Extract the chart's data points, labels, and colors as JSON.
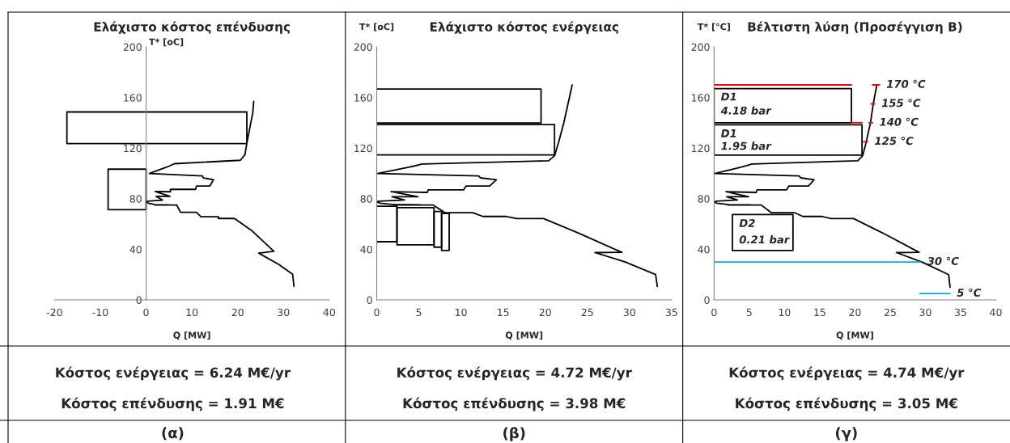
{
  "chart_data": [
    {
      "type": "line",
      "title": "Ελάχιστο κόστος επένδυσης",
      "xlabel": "Q [MW]",
      "ylabel": "T* [oC]",
      "xlim": [
        -20,
        40
      ],
      "ylim": [
        0,
        200
      ],
      "xticks": [
        -20,
        -10,
        0,
        10,
        20,
        30,
        40
      ],
      "yticks": [
        0,
        40,
        80,
        120,
        160,
        200
      ],
      "series": [
        {
          "color": "#000000",
          "x": [
            23.5,
            23.3,
            22,
            21.6,
            20.6,
            6.2,
            4.5,
            0.7,
            12.3,
            12.5,
            14.7,
            13.9,
            11,
            10.8,
            5.3,
            5.3,
            2,
            5.2,
            2.2,
            3.6,
            0.3,
            0,
            0.5,
            2,
            5,
            2,
            6.7,
            7.5,
            11,
            12,
            15.8,
            15.8,
            19.3,
            23,
            27.9,
            24.6,
            29,
            32,
            32.3
          ],
          "values": [
            157,
            148,
            124,
            115,
            110.4,
            107.7,
            105,
            100,
            98,
            96.5,
            95,
            90,
            90,
            87.4,
            87.4,
            85.5,
            85.7,
            81.9,
            81.9,
            78.9,
            78,
            77.5,
            76.5,
            75.4,
            75.2,
            75,
            75,
            69.3,
            69.3,
            65.7,
            65.7,
            64.4,
            64.4,
            55,
            38.4,
            37,
            28,
            20.3,
            10.7
          ]
        },
        {
          "color": "#000000",
          "x": [
            -17.3,
            22,
            22,
            null,
            22,
            -17.3,
            -17.3
          ],
          "values": [
            123.6,
            123.6,
            148.6,
            null,
            148.6,
            148.6,
            123.6
          ]
        },
        {
          "color": "#000000",
          "x": [
            0,
            -8.3,
            -8.3,
            null,
            -8.3,
            0,
            0
          ],
          "values": [
            71.4,
            71.4,
            103.4,
            null,
            103.4,
            103.4,
            71.4
          ]
        }
      ],
      "annotations": [
        "Κόστος ενέργειας = 6.24 M€/yr",
        "Κόστος επένδυσης = 1.91 M€",
        "(α)"
      ]
    },
    {
      "type": "line",
      "title": "Ελάχιστο κόστος ενέργειας",
      "xlabel": "Q [MW]",
      "ylabel": "T* [oC]",
      "xlim": [
        0,
        35
      ],
      "ylim": [
        0,
        200
      ],
      "xticks": [
        0,
        5,
        10,
        15,
        20,
        25,
        30,
        35
      ],
      "yticks": [
        0,
        40,
        80,
        120,
        160,
        200
      ],
      "series": [
        {
          "color": "#000000",
          "x": [
            23.2,
            22.7,
            22.2,
            21.6,
            21.1,
            20.4,
            5.4,
            3.9,
            0.1,
            12.1,
            12.3,
            14.2,
            13.4,
            10.6,
            10.3,
            6.1,
            6,
            1.7,
            4.9,
            1.8,
            3.3,
            0.3,
            0,
            0.4,
            2.1,
            5.2,
            2,
            6.7,
            8.1,
            11.4,
            12.6,
            15.3,
            16.6,
            19.8,
            23.9,
            29.1,
            25.9,
            29.5,
            33.1,
            33.3
          ],
          "values": [
            170,
            155,
            140,
            125,
            114,
            110,
            107.5,
            105,
            100,
            98,
            96.5,
            95,
            90,
            90,
            87,
            87,
            85,
            85.5,
            81.6,
            81.6,
            79,
            78,
            77.5,
            76.5,
            75.4,
            75.2,
            75,
            75,
            69,
            69,
            66,
            66,
            64.3,
            64.3,
            53,
            37.6,
            37.4,
            30,
            20,
            10.7
          ]
        },
        {
          "color": "#000000",
          "x": [
            0,
            19.5,
            19.5,
            0
          ],
          "values": [
            139.9,
            139.9,
            166.7,
            166.7
          ]
        },
        {
          "color": "#000000",
          "x": [
            0,
            21.1,
            21.1,
            0
          ],
          "values": [
            114.7,
            114.7,
            138.6,
            138.6
          ]
        },
        {
          "color": "#000000",
          "x": [
            0,
            2.4,
            2.4,
            0
          ],
          "values": [
            46,
            46,
            74,
            74
          ]
        },
        {
          "color": "#000000",
          "x": [
            2.4,
            6.8,
            6.8,
            null,
            6.8,
            2.4,
            2.4
          ],
          "values": [
            43.5,
            43.5,
            73,
            null,
            73,
            73,
            43.5
          ]
        },
        {
          "color": "#000000",
          "x": [
            6.8,
            7.7,
            7.7,
            null,
            7.7,
            6.8,
            6.8
          ],
          "values": [
            41.7,
            41.7,
            69.9,
            null,
            69.9,
            69.9,
            41.7
          ]
        },
        {
          "color": "#000000",
          "x": [
            7.7,
            8.6,
            8.6,
            null,
            8.6,
            7.7,
            7.7
          ],
          "values": [
            39.1,
            39.1,
            68.4,
            null,
            68.4,
            68.4,
            39.1
          ]
        }
      ],
      "annotations": [
        "Κόστος ενέργειας = 4.72 M€/yr",
        "Κόστος επένδυσης = 3.98 M€",
        "(β)"
      ]
    },
    {
      "type": "line",
      "title": "Βέλτιστη λύση (Προσέγγιση Β)",
      "xlabel": "Q [MW]",
      "ylabel": "T* [°C]",
      "xlim": [
        0,
        40
      ],
      "ylim": [
        0,
        200
      ],
      "xticks": [
        0,
        5,
        10,
        15,
        20,
        25,
        30,
        35,
        40
      ],
      "yticks": [
        0,
        40,
        80,
        120,
        160,
        200
      ],
      "series": [
        {
          "color": "#000000",
          "x": [
            23.1,
            22.6,
            22.2,
            21.6,
            21.1,
            20.4,
            5.4,
            3.9,
            0.1,
            12.1,
            12.3,
            14.2,
            13.4,
            10.6,
            10.3,
            6.1,
            6,
            1.7,
            4.9,
            1.8,
            3.3,
            0.3,
            0,
            0.4,
            2.1,
            5.2,
            2,
            6.7,
            8.1,
            11.4,
            12.6,
            15.3,
            16.6,
            19.8,
            23.9,
            29.1,
            25.9,
            29.5,
            33.3,
            33.5
          ],
          "values": [
            170,
            155,
            140,
            125,
            114,
            110,
            107.5,
            105,
            100,
            98,
            96.5,
            95,
            90,
            90,
            87,
            87,
            85,
            85.5,
            81.6,
            81.6,
            79,
            78,
            77.5,
            76.5,
            75.4,
            75.2,
            75,
            75,
            69,
            69,
            66,
            66,
            64.3,
            64.3,
            53,
            37.6,
            37.4,
            30,
            20,
            10
          ]
        },
        {
          "color": "#000000",
          "x": [
            0,
            19.5,
            19.5,
            null,
            19.5,
            0,
            0
          ],
          "values": [
            140,
            140,
            167,
            null,
            167,
            167,
            140
          ]
        },
        {
          "color": "#000000",
          "x": [
            0,
            21,
            21,
            null,
            21,
            0,
            0
          ],
          "values": [
            114.5,
            114.5,
            138.5,
            null,
            138.5,
            138.5,
            114.5
          ]
        },
        {
          "color": "#000000",
          "x": [
            2.6,
            11.2,
            11.2,
            null,
            11.2,
            2.6,
            2.6
          ],
          "values": [
            39.1,
            39.1,
            67.5,
            null,
            67.5,
            67.5,
            39.1
          ]
        },
        {
          "color": "#ff0000",
          "x": [
            0,
            19.5,
            null,
            22.5,
            23.5,
            null,
            22.3,
            22.8,
            null,
            19.5,
            21,
            null,
            22,
            22.5,
            null,
            21.2,
            21.8
          ],
          "values": [
            170,
            170,
            null,
            170,
            170,
            null,
            155,
            155,
            null,
            140,
            140,
            null,
            140,
            140,
            null,
            125,
            125
          ]
        },
        {
          "color": "#00b0f0",
          "x": [
            0,
            29.3,
            null,
            29.2,
            33.5
          ],
          "values": [
            30,
            30,
            null,
            5,
            5
          ]
        }
      ],
      "annotations": [
        {
          "text": "170 °C",
          "x": 23.5,
          "y": 170
        },
        {
          "text": "155 °C",
          "x": 22.8,
          "y": 155
        },
        {
          "text": "140 °C",
          "x": 22.5,
          "y": 140
        },
        {
          "text": "125 °C",
          "x": 21.8,
          "y": 125
        },
        {
          "text": "30 °C",
          "x": 29.3,
          "y": 30
        },
        {
          "text": "5 °C",
          "x": 33.5,
          "y": 5
        },
        {
          "text": "D1",
          "x": 0,
          "y": 160
        },
        {
          "text": "4.18 bar",
          "x": 0,
          "y": 149
        },
        {
          "text": "D1",
          "x": 0,
          "y": 131
        },
        {
          "text": "1.95 bar",
          "x": 0,
          "y": 121
        },
        {
          "text": "D2",
          "x": 2.6,
          "y": 60
        },
        {
          "text": "0.21 bar",
          "x": 2.6,
          "y": 47
        },
        "Κόστος ενέργειας = 4.74 M€/yr",
        "Κόστος επένδυσης = 3.05 M€",
        "(γ)"
      ]
    }
  ]
}
